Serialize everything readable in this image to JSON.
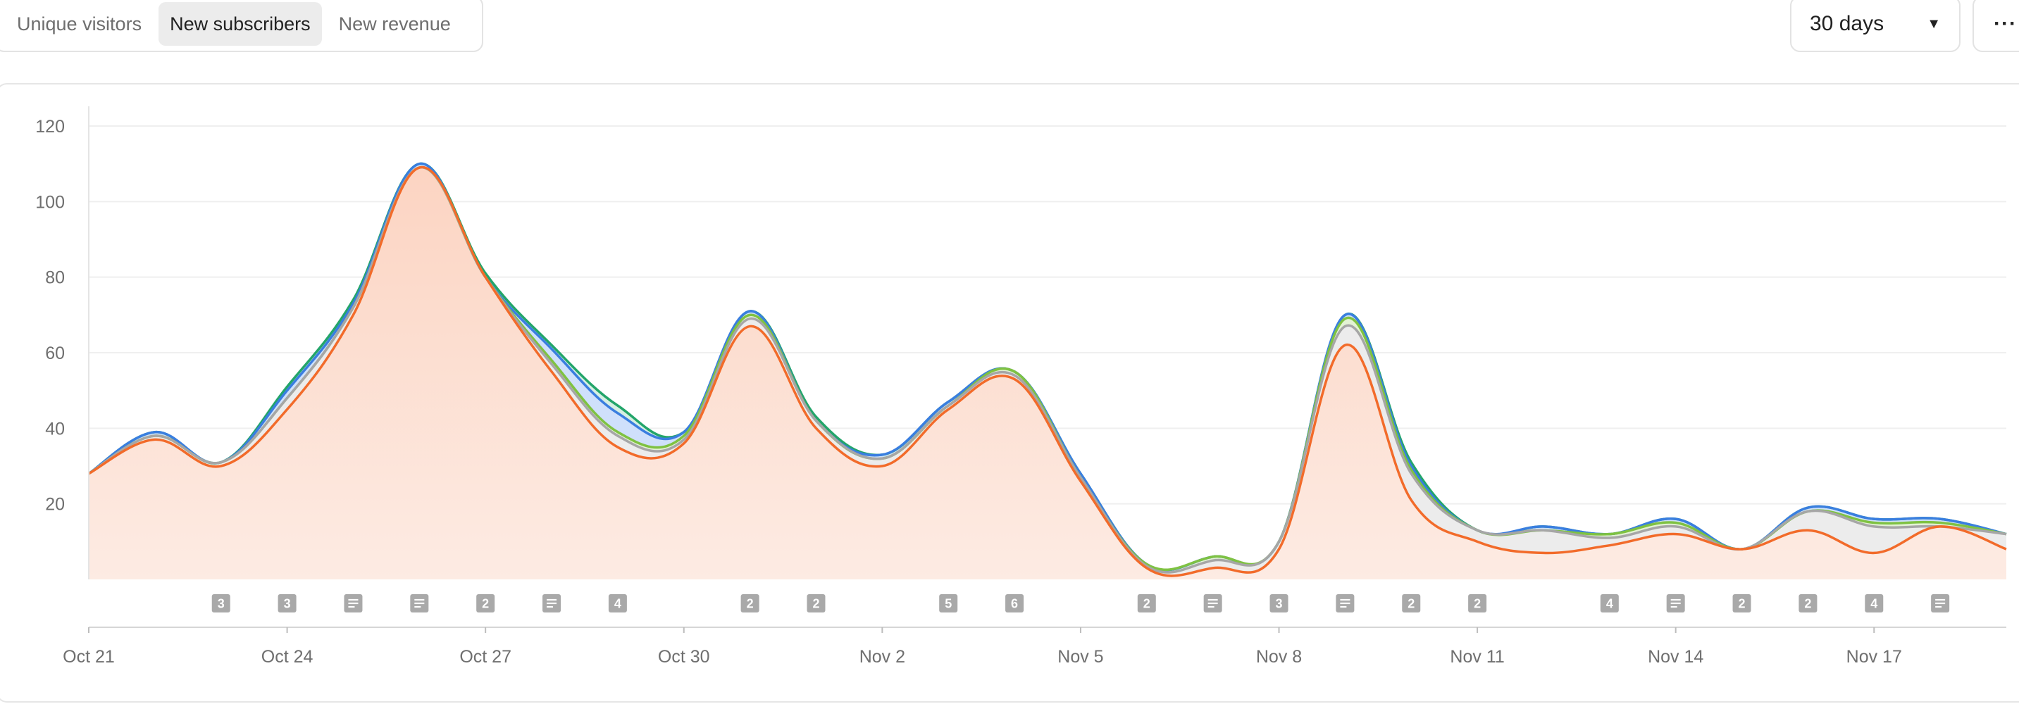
{
  "tabs": [
    {
      "label": "Unique visitors",
      "active": false
    },
    {
      "label": "New subscribers",
      "active": true
    },
    {
      "label": "New revenue",
      "active": false
    }
  ],
  "range": {
    "label": "30 days",
    "caret_icon": "caret-down-icon"
  },
  "more": {
    "label": "···",
    "icon": "more-horizontal-icon"
  },
  "chart_data": {
    "type": "area",
    "title": "",
    "x": [
      "Oct 21",
      "Oct 22",
      "Oct 23",
      "Oct 24",
      "Oct 25",
      "Oct 26",
      "Oct 27",
      "Oct 28",
      "Oct 29",
      "Oct 30",
      "Oct 31",
      "Nov 1",
      "Nov 2",
      "Nov 3",
      "Nov 4",
      "Nov 5",
      "Nov 6",
      "Nov 7",
      "Nov 8",
      "Nov 9",
      "Nov 10",
      "Nov 11",
      "Nov 12",
      "Nov 13",
      "Nov 14",
      "Nov 15",
      "Nov 16",
      "Nov 17",
      "Nov 18",
      "Nov 19"
    ],
    "x_tick_labels": [
      "Oct 21",
      "Oct 24",
      "Oct 27",
      "Oct 30",
      "Nov 2",
      "Nov 5",
      "Nov 8",
      "Nov 11",
      "Nov 14",
      "Nov 17"
    ],
    "ylim": [
      0,
      120
    ],
    "y_ticks": [
      20,
      40,
      60,
      80,
      100,
      120
    ],
    "grid": true,
    "series": [
      {
        "color": "#f26b2a",
        "fill": "#fdddd0",
        "values": [
          28,
          37,
          30,
          45,
          70,
          109,
          80,
          55,
          35,
          36,
          67,
          40,
          30,
          45,
          53,
          26,
          3,
          3,
          8,
          62,
          21,
          10,
          7,
          9,
          12,
          8,
          13,
          7,
          14,
          8
        ]
      },
      {
        "color": "#a6a6a6",
        "fill": "#ececec",
        "values": [
          28,
          38,
          31,
          48,
          72,
          109,
          80,
          57,
          38,
          37,
          69,
          42,
          32,
          46,
          54,
          27,
          3.5,
          5,
          10,
          67,
          28,
          13,
          13,
          11,
          14,
          8,
          18,
          14,
          14,
          12
        ]
      },
      {
        "color": "#7fc242",
        "fill": "#e3f2d4",
        "values": [
          28,
          38,
          31,
          48,
          72,
          109,
          80,
          58,
          39,
          38,
          70,
          42,
          32,
          46,
          55,
          27,
          4,
          6,
          10,
          69,
          29,
          13,
          13,
          12,
          15,
          8,
          18,
          15,
          15,
          12
        ]
      },
      {
        "color": "#3a7ee0",
        "fill": "#cfe0fb",
        "values": [
          28,
          39,
          31,
          50,
          73,
          110,
          80,
          61,
          44,
          39,
          71,
          42,
          33,
          47,
          55,
          28,
          4,
          6,
          10,
          70,
          30,
          13,
          14,
          12,
          16,
          8,
          19,
          16,
          16,
          12
        ]
      },
      {
        "color": "#23a56a",
        "fill": "#d6efe2",
        "values": [
          28,
          39,
          31,
          51,
          74,
          110,
          81,
          62,
          46,
          39,
          71,
          43,
          33,
          47,
          55,
          28,
          4,
          6,
          10,
          70,
          31,
          13,
          14,
          12,
          16,
          8,
          19,
          16,
          16,
          12
        ]
      }
    ],
    "markers": [
      {
        "date": "Oct 23",
        "label": "3",
        "kind": "count"
      },
      {
        "date": "Oct 24",
        "label": "3",
        "kind": "count"
      },
      {
        "date": "Oct 25",
        "label": "",
        "kind": "note"
      },
      {
        "date": "Oct 26",
        "label": "",
        "kind": "note"
      },
      {
        "date": "Oct 27",
        "label": "2",
        "kind": "count"
      },
      {
        "date": "Oct 28",
        "label": "",
        "kind": "note"
      },
      {
        "date": "Oct 29",
        "label": "4",
        "kind": "count"
      },
      {
        "date": "Oct 31",
        "label": "2",
        "kind": "count"
      },
      {
        "date": "Nov 1",
        "label": "2",
        "kind": "count"
      },
      {
        "date": "Nov 3",
        "label": "5",
        "kind": "count"
      },
      {
        "date": "Nov 4",
        "label": "6",
        "kind": "count"
      },
      {
        "date": "Nov 6",
        "label": "2",
        "kind": "count"
      },
      {
        "date": "Nov 7",
        "label": "",
        "kind": "note"
      },
      {
        "date": "Nov 8",
        "label": "3",
        "kind": "count"
      },
      {
        "date": "Nov 9",
        "label": "",
        "kind": "note"
      },
      {
        "date": "Nov 10",
        "label": "2",
        "kind": "count"
      },
      {
        "date": "Nov 11",
        "label": "2",
        "kind": "count"
      },
      {
        "date": "Nov 13",
        "label": "4",
        "kind": "count"
      },
      {
        "date": "Nov 14",
        "label": "",
        "kind": "note"
      },
      {
        "date": "Nov 15",
        "label": "2",
        "kind": "count"
      },
      {
        "date": "Nov 16",
        "label": "2",
        "kind": "count"
      },
      {
        "date": "Nov 17",
        "label": "4",
        "kind": "count"
      },
      {
        "date": "Nov 18",
        "label": "",
        "kind": "note"
      }
    ]
  }
}
